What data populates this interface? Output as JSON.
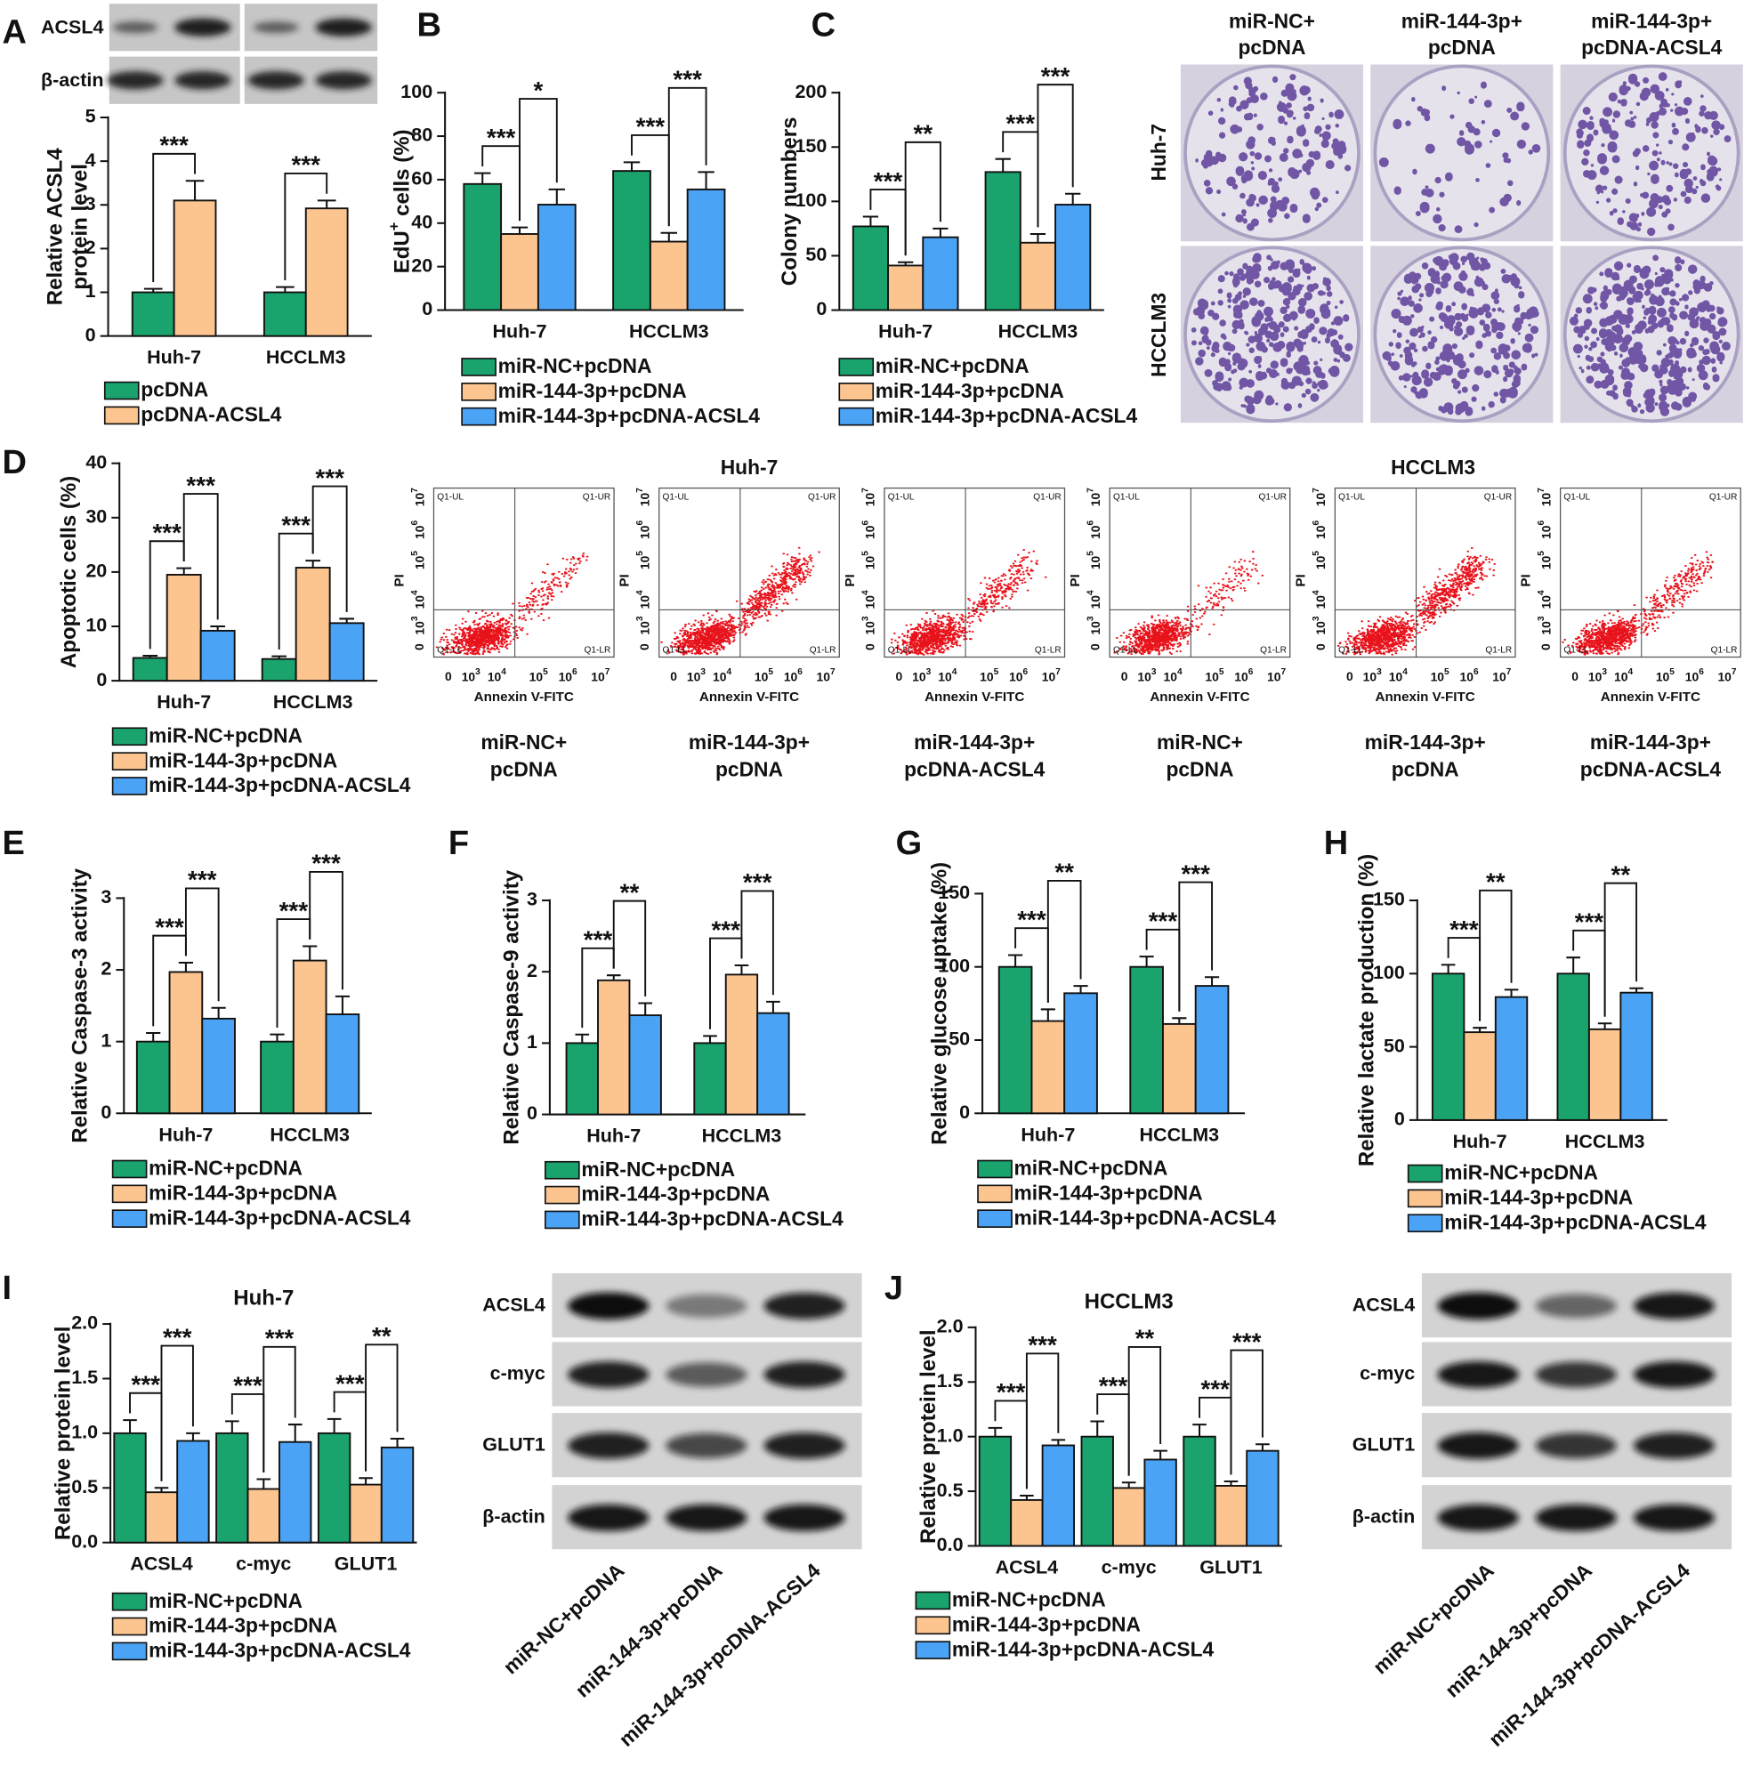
{
  "panel_labels": [
    "A",
    "B",
    "C",
    "D",
    "E",
    "F",
    "G",
    "H",
    "I",
    "J"
  ],
  "blot_a": {
    "rows": [
      "ACSL4",
      "β-actin"
    ]
  },
  "colony": {
    "columns": [
      [
        "miR-NC+",
        "pcDNA"
      ],
      [
        "miR-144-3p+",
        "pcDNA"
      ],
      [
        "miR-144-3p+",
        "pcDNA-ACSL4"
      ]
    ],
    "rows": [
      "Huh-7",
      "HCCLM3"
    ]
  },
  "flow": {
    "groups": [
      "Huh-7",
      "HCCLM3"
    ],
    "xlabel": "Annexin V-FITC",
    "ylabel": "PI",
    "quadrants": [
      "Q1-UL",
      "Q1-UR",
      "Q1-LL",
      "Q1-LR"
    ],
    "ticks": [
      "0",
      {
        "base": "10",
        "exp": "3"
      },
      {
        "base": "10",
        "exp": "4"
      },
      {
        "base": "10",
        "exp": "5"
      },
      {
        "base": "10",
        "exp": "6"
      },
      {
        "base": "10",
        "exp": "7"
      }
    ],
    "captions": [
      [
        "miR-NC+",
        "pcDNA"
      ],
      [
        "miR-144-3p+",
        "pcDNA"
      ],
      [
        "miR-144-3p+",
        "pcDNA-ACSL4"
      ],
      [
        "miR-NC+",
        "pcDNA"
      ],
      [
        "miR-144-3p+",
        "pcDNA"
      ],
      [
        "miR-144-3p+",
        "pcDNA-ACSL4"
      ]
    ]
  },
  "blots": [
    {
      "rows": [
        "ACSL4",
        "c-myc",
        "GLUT1",
        "β-actin"
      ],
      "lanes": [
        "miR-NC+pcDNA",
        "miR-144-3p+pcDNA",
        "miR-144-3p+pcDNA-ACSL4"
      ]
    },
    {
      "rows": [
        "ACSL4",
        "c-myc",
        "GLUT1",
        "β-actin"
      ],
      "lanes": [
        "miR-NC+pcDNA",
        "miR-144-3p+pcDNA",
        "miR-144-3p+pcDNA-ACSL4"
      ]
    }
  ],
  "chart_data": [
    {
      "type": "bar",
      "ylabel": [
        "Relative ACSL4",
        "protein level"
      ],
      "categories": [
        "Huh-7",
        "HCCLM3"
      ],
      "series": [
        {
          "name": "pcDNA",
          "color": "#1aa36d",
          "values": [
            1.0,
            1.0
          ],
          "errors": [
            0.08,
            0.12
          ]
        },
        {
          "name": "pcDNA-ACSL4",
          "color": "#fcc48f",
          "values": [
            3.1,
            2.92
          ],
          "errors": [
            0.45,
            0.18
          ]
        }
      ],
      "ylim": [
        0,
        5
      ],
      "yticks": [
        0,
        1,
        2,
        3,
        4,
        5
      ],
      "significance": [
        [
          "***"
        ],
        [
          "***"
        ]
      ]
    },
    {
      "type": "bar",
      "ylabel": {
        "text": "EdU",
        "superscript": "+",
        "rest": " cells (%)"
      },
      "categories": [
        "Huh-7",
        "HCCLM3"
      ],
      "series": [
        {
          "name": "miR-NC+pcDNA",
          "color": "#1aa36d",
          "values": [
            58,
            64
          ],
          "errors": [
            5,
            4
          ]
        },
        {
          "name": "miR-144-3p+pcDNA",
          "color": "#fcc48f",
          "values": [
            35,
            31.5
          ],
          "errors": [
            3,
            4
          ]
        },
        {
          "name": "miR-144-3p+pcDNA-ACSL4",
          "color": "#4ba3f5",
          "values": [
            48.5,
            55.5
          ],
          "errors": [
            7,
            8
          ]
        }
      ],
      "ylim": [
        0,
        100
      ],
      "yticks": [
        0,
        20,
        40,
        60,
        80,
        100
      ],
      "significance": [
        [
          "***",
          "*"
        ],
        [
          "***",
          "***"
        ]
      ]
    },
    {
      "type": "bar",
      "ylabel": "Colony numbers",
      "categories": [
        "Huh-7",
        "HCCLM3"
      ],
      "series": [
        {
          "name": "miR-NC+pcDNA",
          "color": "#1aa36d",
          "values": [
            77,
            127
          ],
          "errors": [
            9,
            12
          ]
        },
        {
          "name": "miR-144-3p+pcDNA",
          "color": "#fcc48f",
          "values": [
            41,
            62
          ],
          "errors": [
            3,
            8
          ]
        },
        {
          "name": "miR-144-3p+pcDNA-ACSL4",
          "color": "#4ba3f5",
          "values": [
            67,
            97
          ],
          "errors": [
            8,
            10
          ]
        }
      ],
      "ylim": [
        0,
        200
      ],
      "yticks": [
        0,
        50,
        100,
        150,
        200
      ],
      "significance": [
        [
          "***",
          "**"
        ],
        [
          "***",
          "***"
        ]
      ]
    },
    {
      "type": "bar",
      "ylabel": "Apoptotic cells (%)",
      "categories": [
        "Huh-7",
        "HCCLM3"
      ],
      "series": [
        {
          "name": "miR-NC+pcDNA",
          "color": "#1aa36d",
          "values": [
            4.2,
            4.0
          ],
          "errors": [
            0.4,
            0.5
          ]
        },
        {
          "name": "miR-144-3p+pcDNA",
          "color": "#fcc48f",
          "values": [
            19.5,
            20.8
          ],
          "errors": [
            1.2,
            1.3
          ]
        },
        {
          "name": "miR-144-3p+pcDNA-ACSL4",
          "color": "#4ba3f5",
          "values": [
            9.2,
            10.6
          ],
          "errors": [
            0.8,
            0.8
          ]
        }
      ],
      "ylim": [
        0,
        40
      ],
      "yticks": [
        0,
        10,
        20,
        30,
        40
      ],
      "significance": [
        [
          "***",
          "***"
        ],
        [
          "***",
          "***"
        ]
      ]
    },
    {
      "type": "bar",
      "ylabel": "Relative Caspase-3 activity",
      "categories": [
        "Huh-7",
        "HCCLM3"
      ],
      "series": [
        {
          "name": "miR-NC+pcDNA",
          "color": "#1aa36d",
          "values": [
            1.0,
            1.0
          ],
          "errors": [
            0.12,
            0.1
          ]
        },
        {
          "name": "miR-144-3p+pcDNA",
          "color": "#fcc48f",
          "values": [
            1.97,
            2.13
          ],
          "errors": [
            0.13,
            0.2
          ]
        },
        {
          "name": "miR-144-3p+pcDNA-ACSL4",
          "color": "#4ba3f5",
          "values": [
            1.32,
            1.38
          ],
          "errors": [
            0.15,
            0.25
          ]
        }
      ],
      "ylim": [
        0,
        3
      ],
      "yticks": [
        0,
        1,
        2,
        3
      ],
      "significance": [
        [
          "***",
          "***"
        ],
        [
          "***",
          "***"
        ]
      ]
    },
    {
      "type": "bar",
      "ylabel": "Relative Caspase-9 activity",
      "categories": [
        "Huh-7",
        "HCCLM3"
      ],
      "series": [
        {
          "name": "miR-NC+pcDNA",
          "color": "#1aa36d",
          "values": [
            1.0,
            1.0
          ],
          "errors": [
            0.12,
            0.1
          ]
        },
        {
          "name": "miR-144-3p+pcDNA",
          "color": "#fcc48f",
          "values": [
            1.88,
            1.96
          ],
          "errors": [
            0.07,
            0.13
          ]
        },
        {
          "name": "miR-144-3p+pcDNA-ACSL4",
          "color": "#4ba3f5",
          "values": [
            1.39,
            1.42
          ],
          "errors": [
            0.17,
            0.16
          ]
        }
      ],
      "ylim": [
        0,
        3
      ],
      "yticks": [
        0,
        1,
        2,
        3
      ],
      "significance": [
        [
          "***",
          "**"
        ],
        [
          "***",
          "***"
        ]
      ]
    },
    {
      "type": "bar",
      "ylabel": "Relative glucose uptake (%)",
      "categories": [
        "Huh-7",
        "HCCLM3"
      ],
      "series": [
        {
          "name": "miR-NC+pcDNA",
          "color": "#1aa36d",
          "values": [
            100,
            100
          ],
          "errors": [
            8,
            7
          ]
        },
        {
          "name": "miR-144-3p+pcDNA",
          "color": "#fcc48f",
          "values": [
            63,
            61
          ],
          "errors": [
            8,
            4
          ]
        },
        {
          "name": "miR-144-3p+pcDNA-ACSL4",
          "color": "#4ba3f5",
          "values": [
            82,
            87
          ],
          "errors": [
            5,
            6
          ]
        }
      ],
      "ylim": [
        0,
        150
      ],
      "yticks": [
        0,
        50,
        100,
        150
      ],
      "significance": [
        [
          "***",
          "**"
        ],
        [
          "***",
          "***"
        ]
      ]
    },
    {
      "type": "bar",
      "ylabel": "Relative lactate production (%)",
      "categories": [
        "Huh-7",
        "HCCLM3"
      ],
      "series": [
        {
          "name": "miR-NC+pcDNA",
          "color": "#1aa36d",
          "values": [
            100,
            100
          ],
          "errors": [
            6,
            11
          ]
        },
        {
          "name": "miR-144-3p+pcDNA",
          "color": "#fcc48f",
          "values": [
            60,
            62
          ],
          "errors": [
            3,
            4
          ]
        },
        {
          "name": "miR-144-3p+pcDNA-ACSL4",
          "color": "#4ba3f5",
          "values": [
            84,
            87
          ],
          "errors": [
            5,
            3
          ]
        }
      ],
      "ylim": [
        0,
        150
      ],
      "yticks": [
        0,
        50,
        100,
        150
      ],
      "significance": [
        [
          "***",
          "**"
        ],
        [
          "***",
          "**"
        ]
      ]
    },
    {
      "type": "bar",
      "title": "Huh-7",
      "ylabel": "Relative protein level",
      "categories": [
        "ACSL4",
        "c-myc",
        "GLUT1"
      ],
      "series": [
        {
          "name": "miR-NC+pcDNA",
          "color": "#1aa36d",
          "values": [
            1.0,
            1.0,
            1.0
          ],
          "errors": [
            0.12,
            0.11,
            0.13
          ]
        },
        {
          "name": "miR-144-3p+pcDNA",
          "color": "#fcc48f",
          "values": [
            0.46,
            0.49,
            0.53
          ],
          "errors": [
            0.04,
            0.09,
            0.06
          ]
        },
        {
          "name": "miR-144-3p+pcDNA-ACSL4",
          "color": "#4ba3f5",
          "values": [
            0.93,
            0.92,
            0.87
          ],
          "errors": [
            0.07,
            0.16,
            0.08
          ]
        }
      ],
      "ylim": [
        0,
        2
      ],
      "yticks": [
        {
          "value": 0,
          "label": "0.0"
        },
        {
          "value": 0.5,
          "label": "0.5"
        },
        {
          "value": 1,
          "label": "1.0"
        },
        {
          "value": 1.5,
          "label": "1.5"
        },
        {
          "value": 2,
          "label": "2.0"
        }
      ],
      "significance": [
        [
          "***",
          "***"
        ],
        [
          "***",
          "***"
        ],
        [
          "***",
          "**"
        ]
      ]
    },
    {
      "type": "bar",
      "title": "HCCLM3",
      "ylabel": "Relative protein level",
      "categories": [
        "ACSL4",
        "c-myc",
        "GLUT1"
      ],
      "series": [
        {
          "name": "miR-NC+pcDNA",
          "color": "#1aa36d",
          "values": [
            1.0,
            1.0,
            1.0
          ],
          "errors": [
            0.08,
            0.14,
            0.11
          ]
        },
        {
          "name": "miR-144-3p+pcDNA",
          "color": "#fcc48f",
          "values": [
            0.42,
            0.53,
            0.55
          ],
          "errors": [
            0.04,
            0.05,
            0.04
          ]
        },
        {
          "name": "miR-144-3p+pcDNA-ACSL4",
          "color": "#4ba3f5",
          "values": [
            0.92,
            0.79,
            0.87
          ],
          "errors": [
            0.05,
            0.08,
            0.06
          ]
        }
      ],
      "ylim": [
        0,
        2
      ],
      "yticks": [
        {
          "value": 0,
          "label": "0.0"
        },
        {
          "value": 0.5,
          "label": "0.5"
        },
        {
          "value": 1,
          "label": "1.0"
        },
        {
          "value": 1.5,
          "label": "1.5"
        },
        {
          "value": 2,
          "label": "2.0"
        }
      ],
      "significance": [
        [
          "***",
          "***"
        ],
        [
          "***",
          "**"
        ],
        [
          "***",
          "***"
        ]
      ]
    }
  ]
}
